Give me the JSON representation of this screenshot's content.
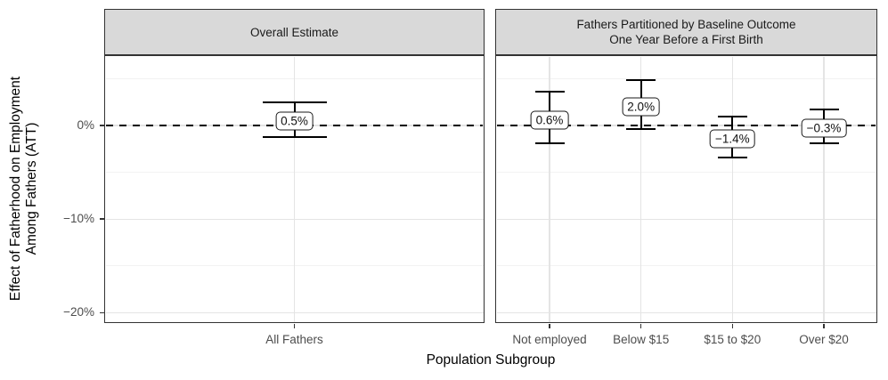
{
  "colors": {
    "background": "#ffffff",
    "strip_background": "#d9d9d9",
    "panel_border": "#333333",
    "grid_major": "#e4e4e4",
    "grid_minor": "#f2f2f2",
    "tick_text": "#4d4d4d",
    "axis_title_text": "#000000",
    "data_stroke": "#000000",
    "label_box_background": "#ffffff",
    "label_box_border": "#1a1a1a"
  },
  "chart_data": {
    "type": "errorbar",
    "title": "",
    "xlabel": "Population Subgroup",
    "ylabel_lines": [
      "Effect of Fatherhood on Employment",
      "Among Fathers (ATT)"
    ],
    "y_unit": "%",
    "ylim": [
      -21.1,
      7.5
    ],
    "y_major_ticks": [
      {
        "value": 0,
        "label": "0%"
      },
      {
        "value": -10,
        "label": "−10%"
      },
      {
        "value": -20,
        "label": "−20%"
      }
    ],
    "y_minor_gridlines": [
      5,
      -5,
      -15
    ],
    "reference_line": {
      "value": 0,
      "style": "dashed"
    },
    "grid": true,
    "legend": "none",
    "panels": [
      {
        "strip_lines": [
          "Overall Estimate"
        ],
        "points": [
          {
            "category": "All Fathers",
            "estimate": 0.5,
            "label": "0.5%",
            "ci_low": -1.2,
            "ci_high": 2.5
          }
        ]
      },
      {
        "strip_lines": [
          "Fathers Partitioned by Baseline Outcome",
          "One Year Before a First Birth"
        ],
        "points": [
          {
            "category": "Not employed",
            "estimate": 0.6,
            "label": "0.6%",
            "ci_low": -1.9,
            "ci_high": 3.6
          },
          {
            "category": "Below $15",
            "estimate": 2.0,
            "label": "2.0%",
            "ci_low": -0.4,
            "ci_high": 4.8
          },
          {
            "category": "$15 to $20",
            "estimate": -1.4,
            "label": "−1.4%",
            "ci_low": -3.4,
            "ci_high": 0.9
          },
          {
            "category": "Over $20",
            "estimate": -0.3,
            "label": "−0.3%",
            "ci_low": -1.9,
            "ci_high": 1.7
          }
        ]
      }
    ]
  }
}
